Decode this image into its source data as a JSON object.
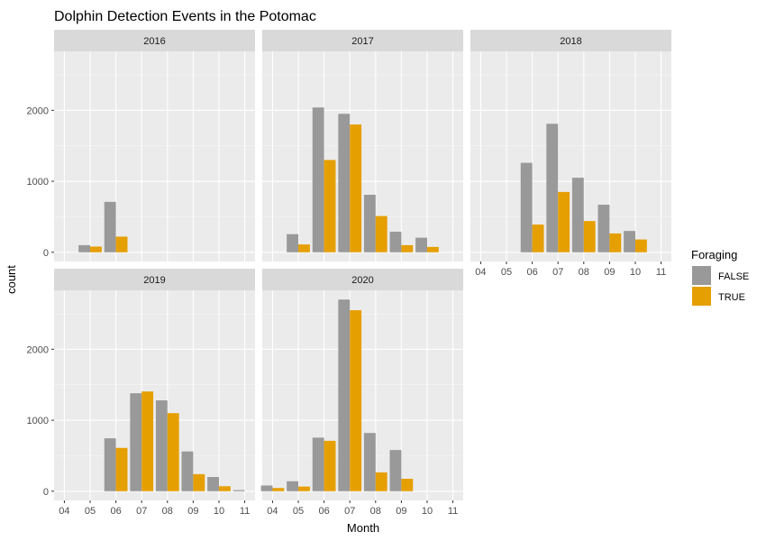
{
  "chart_data": {
    "type": "bar",
    "subtype": "faceted-grouped-bar",
    "title": "Dolphin Detection Events in the Potomac",
    "xlabel": "Month",
    "ylabel": "count",
    "categories": [
      "04",
      "05",
      "06",
      "07",
      "08",
      "09",
      "10",
      "11"
    ],
    "yticks": [
      0,
      1000,
      2000
    ],
    "ylim": [
      -130,
      2830
    ],
    "grid": true,
    "legend": {
      "title": "Foraging",
      "position": "right",
      "entries": [
        {
          "label": "FALSE",
          "color": "#999999"
        },
        {
          "label": "TRUE",
          "color": "#E69F00"
        }
      ]
    },
    "facets": [
      {
        "label": "2016",
        "series": [
          {
            "name": "FALSE",
            "values": [
              null,
              100,
              710,
              null,
              null,
              null,
              null,
              null
            ]
          },
          {
            "name": "TRUE",
            "values": [
              null,
              80,
              220,
              null,
              null,
              null,
              null,
              null
            ]
          }
        ]
      },
      {
        "label": "2017",
        "series": [
          {
            "name": "FALSE",
            "values": [
              null,
              255,
              2040,
              1950,
              810,
              290,
              205,
              null
            ]
          },
          {
            "name": "TRUE",
            "values": [
              null,
              110,
              1300,
              1800,
              510,
              100,
              75,
              null
            ]
          }
        ]
      },
      {
        "label": "2018",
        "series": [
          {
            "name": "FALSE",
            "values": [
              null,
              null,
              1260,
              1810,
              1050,
              670,
              300,
              null
            ]
          },
          {
            "name": "TRUE",
            "values": [
              null,
              null,
              390,
              850,
              440,
              265,
              180,
              null
            ]
          }
        ]
      },
      {
        "label": "2019",
        "series": [
          {
            "name": "FALSE",
            "values": [
              null,
              null,
              745,
              1380,
              1280,
              560,
              200,
              15
            ]
          },
          {
            "name": "TRUE",
            "values": [
              null,
              null,
              610,
              1405,
              1100,
              240,
              70,
              null
            ]
          }
        ]
      },
      {
        "label": "2020",
        "series": [
          {
            "name": "FALSE",
            "values": [
              80,
              140,
              755,
              2700,
              820,
              580,
              null,
              null
            ]
          },
          {
            "name": "TRUE",
            "values": [
              45,
              65,
              710,
              2550,
              265,
              175,
              null,
              null
            ]
          }
        ]
      }
    ]
  }
}
